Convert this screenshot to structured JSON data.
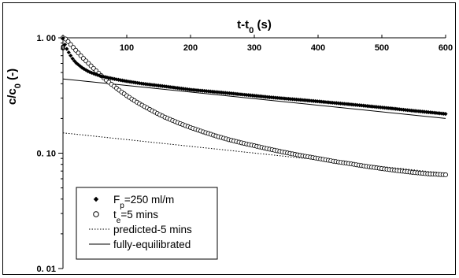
{
  "chart_data": {
    "type": "scatter",
    "x_title": {
      "main": "t-t",
      "sub": "0",
      "tail": " (s)"
    },
    "y_title": {
      "main": "c/c",
      "sub": "0",
      "tail": " (-)"
    },
    "x_axis": {
      "position": "top",
      "min": 0,
      "max": 600,
      "ticks": [
        0,
        100,
        200,
        300,
        400,
        500,
        600
      ],
      "tick_labels": [
        "0",
        "100",
        "200",
        "300",
        "400",
        "500",
        "600"
      ]
    },
    "y_axis": {
      "scale": "log",
      "min": 0.01,
      "max": 1.0,
      "ticks": [
        1.0,
        0.1,
        0.01
      ],
      "tick_labels": [
        "1. 00",
        "0. 10",
        "0. 01"
      ]
    },
    "grid": false,
    "legend_position": "bottom-left",
    "series": [
      {
        "key": "fp",
        "name": {
          "main": "F",
          "sub": "p",
          "tail": "=250 ml/m"
        },
        "marker": "filled-diamond",
        "points": [
          [
            0,
            0.99
          ],
          [
            2,
            0.9
          ],
          [
            5,
            0.82
          ],
          [
            10,
            0.73
          ],
          [
            15,
            0.66
          ],
          [
            20,
            0.61
          ],
          [
            30,
            0.55
          ],
          [
            40,
            0.51
          ],
          [
            50,
            0.485
          ],
          [
            60,
            0.465
          ],
          [
            80,
            0.44
          ],
          [
            100,
            0.42
          ],
          [
            125,
            0.4
          ],
          [
            150,
            0.385
          ],
          [
            175,
            0.37
          ],
          [
            200,
            0.355
          ],
          [
            225,
            0.345
          ],
          [
            250,
            0.335
          ],
          [
            275,
            0.325
          ],
          [
            300,
            0.315
          ],
          [
            325,
            0.305
          ],
          [
            350,
            0.297
          ],
          [
            375,
            0.289
          ],
          [
            400,
            0.281
          ],
          [
            425,
            0.273
          ],
          [
            450,
            0.265
          ],
          [
            475,
            0.257
          ],
          [
            500,
            0.249
          ],
          [
            525,
            0.241
          ],
          [
            550,
            0.233
          ],
          [
            575,
            0.226
          ],
          [
            600,
            0.219
          ]
        ]
      },
      {
        "key": "te",
        "name": {
          "main": "t",
          "sub": "e",
          "tail": "=5 mins"
        },
        "marker": "open-circle",
        "points": [
          [
            0,
            1.0
          ],
          [
            5,
            0.97
          ],
          [
            10,
            0.9
          ],
          [
            20,
            0.78
          ],
          [
            30,
            0.68
          ],
          [
            40,
            0.6
          ],
          [
            50,
            0.53
          ],
          [
            60,
            0.47
          ],
          [
            70,
            0.42
          ],
          [
            80,
            0.38
          ],
          [
            90,
            0.345
          ],
          [
            100,
            0.315
          ],
          [
            110,
            0.29
          ],
          [
            120,
            0.268
          ],
          [
            130,
            0.25
          ],
          [
            140,
            0.233
          ],
          [
            150,
            0.218
          ],
          [
            160,
            0.205
          ],
          [
            170,
            0.194
          ],
          [
            180,
            0.184
          ],
          [
            190,
            0.175
          ],
          [
            200,
            0.167
          ],
          [
            220,
            0.153
          ],
          [
            240,
            0.141
          ],
          [
            260,
            0.131
          ],
          [
            280,
            0.123
          ],
          [
            300,
            0.116
          ],
          [
            325,
            0.108
          ],
          [
            350,
            0.101
          ],
          [
            375,
            0.095
          ],
          [
            400,
            0.09
          ],
          [
            425,
            0.085
          ],
          [
            450,
            0.081
          ],
          [
            475,
            0.077
          ],
          [
            500,
            0.0735
          ],
          [
            525,
            0.0705
          ],
          [
            550,
            0.068
          ],
          [
            575,
            0.066
          ],
          [
            600,
            0.065
          ]
        ]
      },
      {
        "key": "pred",
        "name": {
          "main": "predicted-5 mins",
          "sub": "",
          "tail": ""
        },
        "style": "dotted",
        "points": [
          [
            0,
            0.15
          ],
          [
            600,
            0.067
          ]
        ]
      },
      {
        "key": "full",
        "name": {
          "main": "fully-equilibrated",
          "sub": "",
          "tail": ""
        },
        "style": "solid",
        "points": [
          [
            0,
            0.44
          ],
          [
            600,
            0.2
          ]
        ]
      }
    ]
  }
}
